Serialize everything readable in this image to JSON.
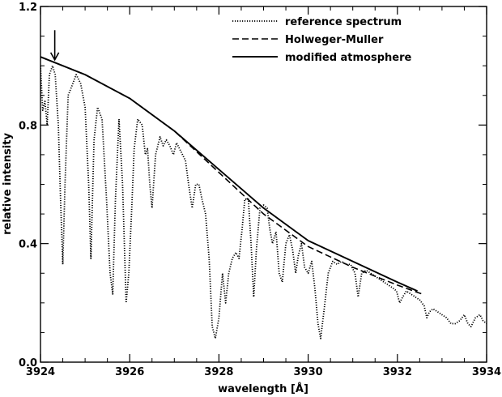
{
  "chart_data": {
    "type": "line",
    "xlabel": "wavelength [Å]",
    "ylabel": "relative intensity",
    "xlim": [
      3924,
      3934
    ],
    "ylim": [
      0.0,
      1.2
    ],
    "x_ticks": [
      3924,
      3926,
      3928,
      3930,
      3932,
      3934
    ],
    "x_tick_labels": [
      "3924",
      "3926",
      "3928",
      "3930",
      "3932",
      "3934"
    ],
    "y_ticks": [
      0.0,
      0.4,
      0.8,
      1.2
    ],
    "y_tick_labels": [
      "0.0",
      "0.4",
      "0.8",
      "1.2"
    ],
    "grid": false,
    "legend_position": "top-right",
    "arrow_annotation": {
      "x": 3924.32,
      "y_from": 1.12,
      "y_to": 1.02
    },
    "series": [
      {
        "name": "reference spectrum",
        "style": "dotted",
        "points": [
          [
            3924.0,
            1.0
          ],
          [
            3924.05,
            0.85
          ],
          [
            3924.1,
            0.88
          ],
          [
            3924.15,
            0.8
          ],
          [
            3924.2,
            0.97
          ],
          [
            3924.27,
            1.0
          ],
          [
            3924.33,
            0.97
          ],
          [
            3924.4,
            0.8
          ],
          [
            3924.45,
            0.55
          ],
          [
            3924.5,
            0.33
          ],
          [
            3924.55,
            0.6
          ],
          [
            3924.62,
            0.9
          ],
          [
            3924.7,
            0.93
          ],
          [
            3924.8,
            0.97
          ],
          [
            3924.9,
            0.94
          ],
          [
            3925.0,
            0.86
          ],
          [
            3925.08,
            0.6
          ],
          [
            3925.13,
            0.35
          ],
          [
            3925.2,
            0.75
          ],
          [
            3925.28,
            0.86
          ],
          [
            3925.38,
            0.82
          ],
          [
            3925.48,
            0.55
          ],
          [
            3925.56,
            0.3
          ],
          [
            3925.62,
            0.23
          ],
          [
            3925.68,
            0.55
          ],
          [
            3925.76,
            0.82
          ],
          [
            3925.84,
            0.6
          ],
          [
            3925.92,
            0.2
          ],
          [
            3925.98,
            0.3
          ],
          [
            3926.04,
            0.5
          ],
          [
            3926.1,
            0.72
          ],
          [
            3926.18,
            0.82
          ],
          [
            3926.28,
            0.8
          ],
          [
            3926.35,
            0.7
          ],
          [
            3926.4,
            0.72
          ],
          [
            3926.45,
            0.6
          ],
          [
            3926.5,
            0.52
          ],
          [
            3926.58,
            0.7
          ],
          [
            3926.68,
            0.76
          ],
          [
            3926.75,
            0.73
          ],
          [
            3926.82,
            0.75
          ],
          [
            3926.9,
            0.73
          ],
          [
            3926.98,
            0.7
          ],
          [
            3927.05,
            0.74
          ],
          [
            3927.15,
            0.71
          ],
          [
            3927.25,
            0.68
          ],
          [
            3927.32,
            0.6
          ],
          [
            3927.4,
            0.52
          ],
          [
            3927.48,
            0.6
          ],
          [
            3927.55,
            0.6
          ],
          [
            3927.62,
            0.55
          ],
          [
            3927.7,
            0.5
          ],
          [
            3927.78,
            0.35
          ],
          [
            3927.85,
            0.12
          ],
          [
            3927.92,
            0.08
          ],
          [
            3928.0,
            0.15
          ],
          [
            3928.08,
            0.3
          ],
          [
            3928.15,
            0.2
          ],
          [
            3928.22,
            0.3
          ],
          [
            3928.3,
            0.35
          ],
          [
            3928.38,
            0.37
          ],
          [
            3928.45,
            0.35
          ],
          [
            3928.52,
            0.45
          ],
          [
            3928.58,
            0.55
          ],
          [
            3928.66,
            0.55
          ],
          [
            3928.72,
            0.4
          ],
          [
            3928.78,
            0.22
          ],
          [
            3928.84,
            0.38
          ],
          [
            3928.92,
            0.52
          ],
          [
            3929.0,
            0.53
          ],
          [
            3929.08,
            0.52
          ],
          [
            3929.14,
            0.45
          ],
          [
            3929.2,
            0.4
          ],
          [
            3929.28,
            0.44
          ],
          [
            3929.35,
            0.3
          ],
          [
            3929.42,
            0.27
          ],
          [
            3929.5,
            0.4
          ],
          [
            3929.58,
            0.43
          ],
          [
            3929.65,
            0.38
          ],
          [
            3929.72,
            0.3
          ],
          [
            3929.78,
            0.36
          ],
          [
            3929.85,
            0.4
          ],
          [
            3929.92,
            0.32
          ],
          [
            3930.0,
            0.3
          ],
          [
            3930.08,
            0.34
          ],
          [
            3930.15,
            0.25
          ],
          [
            3930.22,
            0.13
          ],
          [
            3930.28,
            0.08
          ],
          [
            3930.36,
            0.18
          ],
          [
            3930.45,
            0.3
          ],
          [
            3930.55,
            0.34
          ],
          [
            3930.65,
            0.33
          ],
          [
            3930.75,
            0.34
          ],
          [
            3930.85,
            0.33
          ],
          [
            3930.95,
            0.33
          ],
          [
            3931.05,
            0.3
          ],
          [
            3931.12,
            0.22
          ],
          [
            3931.2,
            0.3
          ],
          [
            3931.3,
            0.31
          ],
          [
            3931.4,
            0.3
          ],
          [
            3931.5,
            0.29
          ],
          [
            3931.6,
            0.28
          ],
          [
            3931.7,
            0.27
          ],
          [
            3931.8,
            0.26
          ],
          [
            3931.9,
            0.25
          ],
          [
            3931.98,
            0.24
          ],
          [
            3932.05,
            0.2
          ],
          [
            3932.12,
            0.22
          ],
          [
            3932.2,
            0.24
          ],
          [
            3932.3,
            0.23
          ],
          [
            3932.4,
            0.22
          ],
          [
            3932.5,
            0.21
          ],
          [
            3932.6,
            0.19
          ],
          [
            3932.66,
            0.15
          ],
          [
            3932.72,
            0.17
          ],
          [
            3932.8,
            0.18
          ],
          [
            3932.9,
            0.17
          ],
          [
            3933.0,
            0.16
          ],
          [
            3933.1,
            0.15
          ],
          [
            3933.2,
            0.13
          ],
          [
            3933.3,
            0.13
          ],
          [
            3933.4,
            0.14
          ],
          [
            3933.5,
            0.16
          ],
          [
            3933.58,
            0.13
          ],
          [
            3933.65,
            0.12
          ],
          [
            3933.75,
            0.15
          ],
          [
            3933.85,
            0.16
          ],
          [
            3933.92,
            0.14
          ],
          [
            3934.0,
            0.13
          ]
        ]
      },
      {
        "name": "Holweger-Muller",
        "style": "dashed",
        "points": [
          [
            3924.0,
            1.03
          ],
          [
            3925.0,
            0.97
          ],
          [
            3926.0,
            0.89
          ],
          [
            3927.0,
            0.78
          ],
          [
            3928.0,
            0.64
          ],
          [
            3929.0,
            0.5
          ],
          [
            3930.0,
            0.39
          ],
          [
            3931.0,
            0.32
          ],
          [
            3932.0,
            0.26
          ],
          [
            3932.55,
            0.23
          ]
        ]
      },
      {
        "name": "modified atmosphere",
        "style": "solid",
        "points": [
          [
            3924.0,
            1.03
          ],
          [
            3925.0,
            0.97
          ],
          [
            3926.0,
            0.89
          ],
          [
            3927.0,
            0.78
          ],
          [
            3928.0,
            0.65
          ],
          [
            3929.0,
            0.52
          ],
          [
            3930.0,
            0.41
          ],
          [
            3931.0,
            0.34
          ],
          [
            3932.0,
            0.27
          ],
          [
            3932.45,
            0.24
          ]
        ]
      }
    ]
  }
}
